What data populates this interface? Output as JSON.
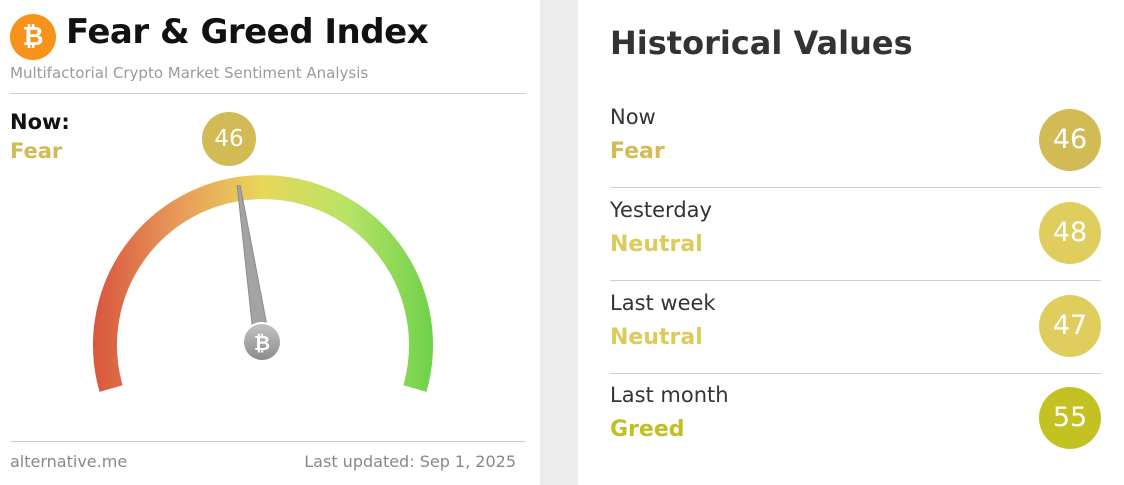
{
  "header": {
    "logo_symbol": "₿",
    "title": "Fear & Greed Index",
    "subtitle": "Multifactorial Crypto Market Sentiment Analysis"
  },
  "current": {
    "label": "Now:",
    "classification": "Fear",
    "value": "46",
    "value_number": 46,
    "gauge_min": 0,
    "gauge_max": 100,
    "color": "#d2bb55"
  },
  "footer": {
    "source": "alternative.me",
    "last_updated": "Last updated: Sep 1, 2025"
  },
  "historical": {
    "title": "Historical Values",
    "rows": [
      {
        "period": "Now",
        "classification": "Fear",
        "value": "46",
        "class_color": "#d2bb55",
        "circle_color": "#d2bb55"
      },
      {
        "period": "Yesterday",
        "classification": "Neutral",
        "value": "48",
        "class_color": "#dcca5a",
        "circle_color": "#dfce5e"
      },
      {
        "period": "Last week",
        "classification": "Neutral",
        "value": "47",
        "class_color": "#dcca5a",
        "circle_color": "#dfce5e"
      },
      {
        "period": "Last month",
        "classification": "Greed",
        "value": "55",
        "class_color": "#c1bf22",
        "circle_color": "#c4c222"
      }
    ]
  },
  "colors": {
    "bitcoin_orange": "#f7931a",
    "gauge_fear": "#d8553d",
    "gauge_neutral": "#e8d75a",
    "gauge_greed": "#6ed14a",
    "needle": "#9a9a9a"
  },
  "icons": {
    "logo": "bitcoin-logo-icon",
    "needle_hub": "bitcoin-coin-icon"
  }
}
